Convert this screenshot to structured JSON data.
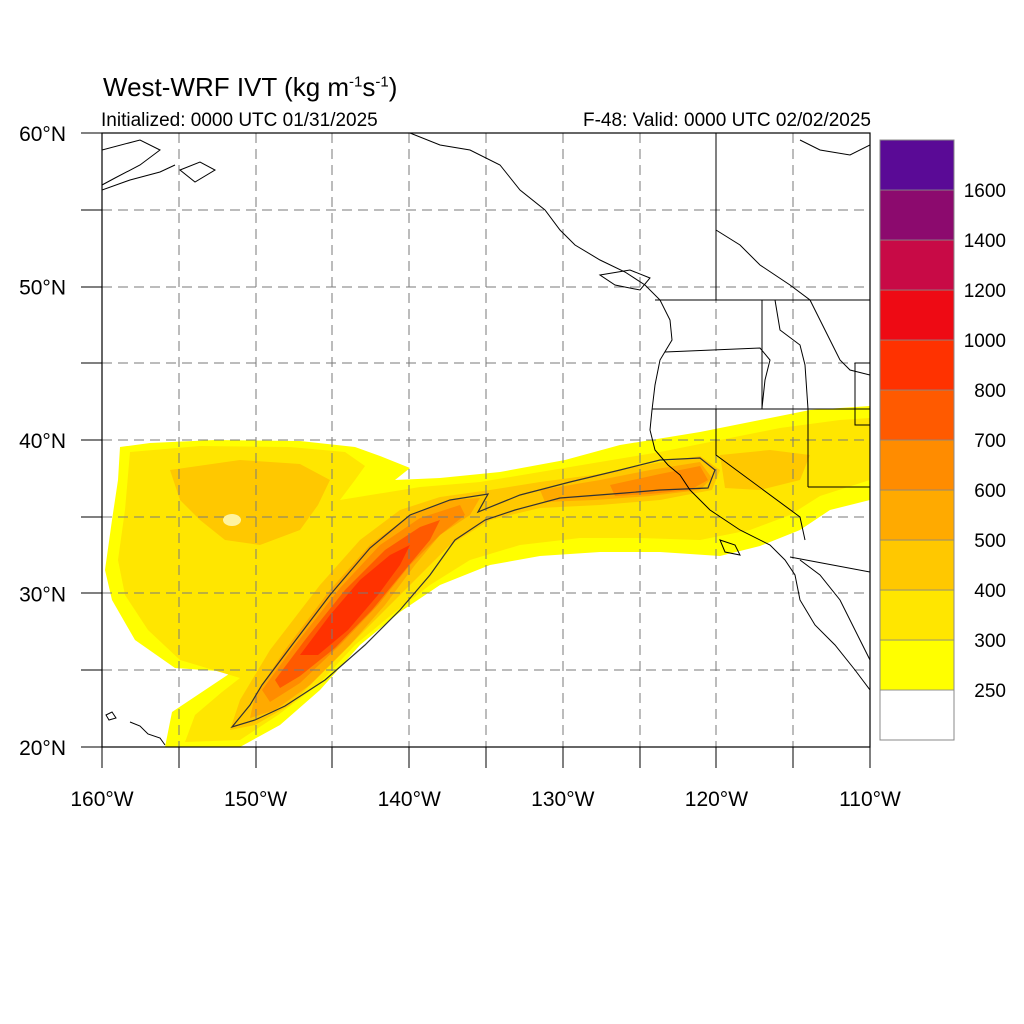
{
  "title": {
    "main": "West-WRF IVT (kg m",
    "sup1": "-1",
    "mid": "s",
    "sup2": "-1",
    "close": ")"
  },
  "initialized": "Initialized: 0000 UTC 01/31/2025",
  "valid": "F-48: Valid: 0000 UTC 02/02/2025",
  "map": {
    "lon_range": [
      -160,
      -110
    ],
    "lat_range": [
      20,
      60
    ],
    "grid": true,
    "lon_ticks": [
      {
        "value": -160,
        "label": "160°W"
      },
      {
        "value": -150,
        "label": "150°W"
      },
      {
        "value": -140,
        "label": "140°W"
      },
      {
        "value": -130,
        "label": "130°W"
      },
      {
        "value": -120,
        "label": "120°W"
      },
      {
        "value": -110,
        "label": "110°W"
      }
    ],
    "lat_ticks": [
      {
        "value": 60,
        "label": "60°N"
      },
      {
        "value": 50,
        "label": "50°N"
      },
      {
        "value": 40,
        "label": "40°N"
      },
      {
        "value": 30,
        "label": "30°N"
      },
      {
        "value": 20,
        "label": "20°N"
      }
    ]
  },
  "colorbar": {
    "levels": [
      {
        "label": "",
        "color": "#ffffff"
      },
      {
        "label": "250",
        "color": "#ffff00"
      },
      {
        "label": "300",
        "color": "#ffe600"
      },
      {
        "label": "400",
        "color": "#ffc800"
      },
      {
        "label": "500",
        "color": "#ffaa00"
      },
      {
        "label": "600",
        "color": "#ff8c00"
      },
      {
        "label": "700",
        "color": "#ff5a00"
      },
      {
        "label": "800",
        "color": "#ff3200"
      },
      {
        "label": "1000",
        "color": "#ee0a14"
      },
      {
        "label": "1200",
        "color": "#c80a46"
      },
      {
        "label": "1400",
        "color": "#8c0a6e"
      },
      {
        "label": "1600",
        "color": "#5a0a96"
      }
    ]
  },
  "icons": {
    "coastline": "coastline-outline",
    "state_borders": "state-border-lines",
    "contour": "ivt-contour-line"
  }
}
